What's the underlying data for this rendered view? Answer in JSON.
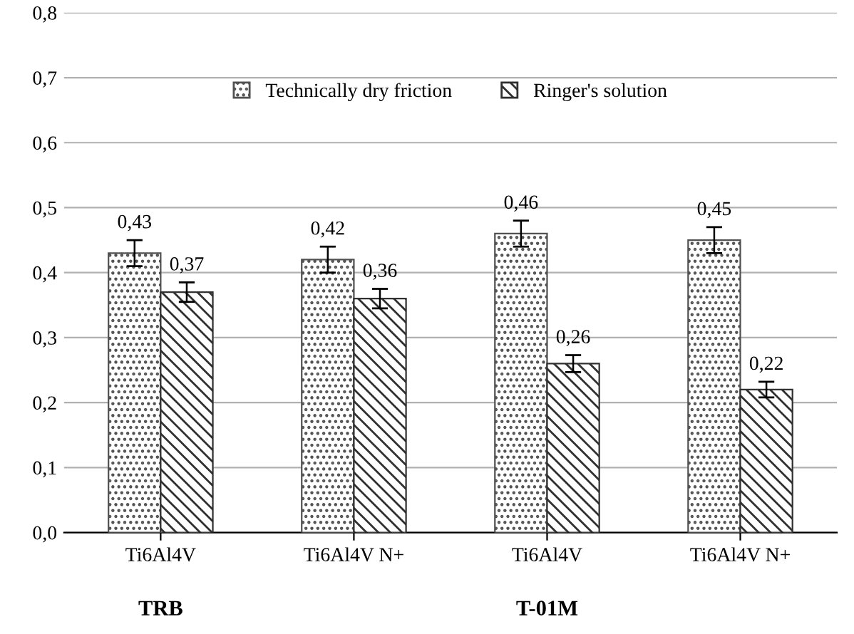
{
  "chart_data": {
    "type": "bar",
    "categories": [
      "Ti6Al4V",
      "Ti6Al4V N+",
      "Ti6Al4V",
      "Ti6Al4V N+"
    ],
    "series": [
      {
        "name": "Technically dry friction",
        "color": "#505050",
        "values": [
          0.43,
          0.42,
          0.46,
          0.45
        ],
        "errors": [
          0.02,
          0.02,
          0.02,
          0.02
        ],
        "value_labels": [
          "0,43",
          "0,42",
          "0,46",
          "0,45"
        ]
      },
      {
        "name": "Ringer's solution",
        "color": "#303030",
        "values": [
          0.37,
          0.36,
          0.26,
          0.22
        ],
        "errors": [
          0.015,
          0.015,
          0.013,
          0.012
        ],
        "value_labels": [
          "0,37",
          "0,36",
          "0,26",
          "0,22"
        ]
      }
    ],
    "ylim": [
      0,
      0.8
    ],
    "yticks": [
      {
        "value": 0,
        "label": "0,0"
      },
      {
        "value": 0.1,
        "label": "0,1"
      },
      {
        "value": 0.2,
        "label": "0,2"
      },
      {
        "value": 0.3,
        "label": "0,3"
      },
      {
        "value": 0.4,
        "label": "0,4"
      },
      {
        "value": 0.5,
        "label": "0,5"
      },
      {
        "value": 0.6,
        "label": "0,6"
      },
      {
        "value": 0.7,
        "label": "0,7"
      },
      {
        "value": 0.8,
        "label": "0,8"
      }
    ],
    "grid": "y",
    "legend": "top",
    "annotations": [
      "TRB",
      "T-01M"
    ]
  }
}
